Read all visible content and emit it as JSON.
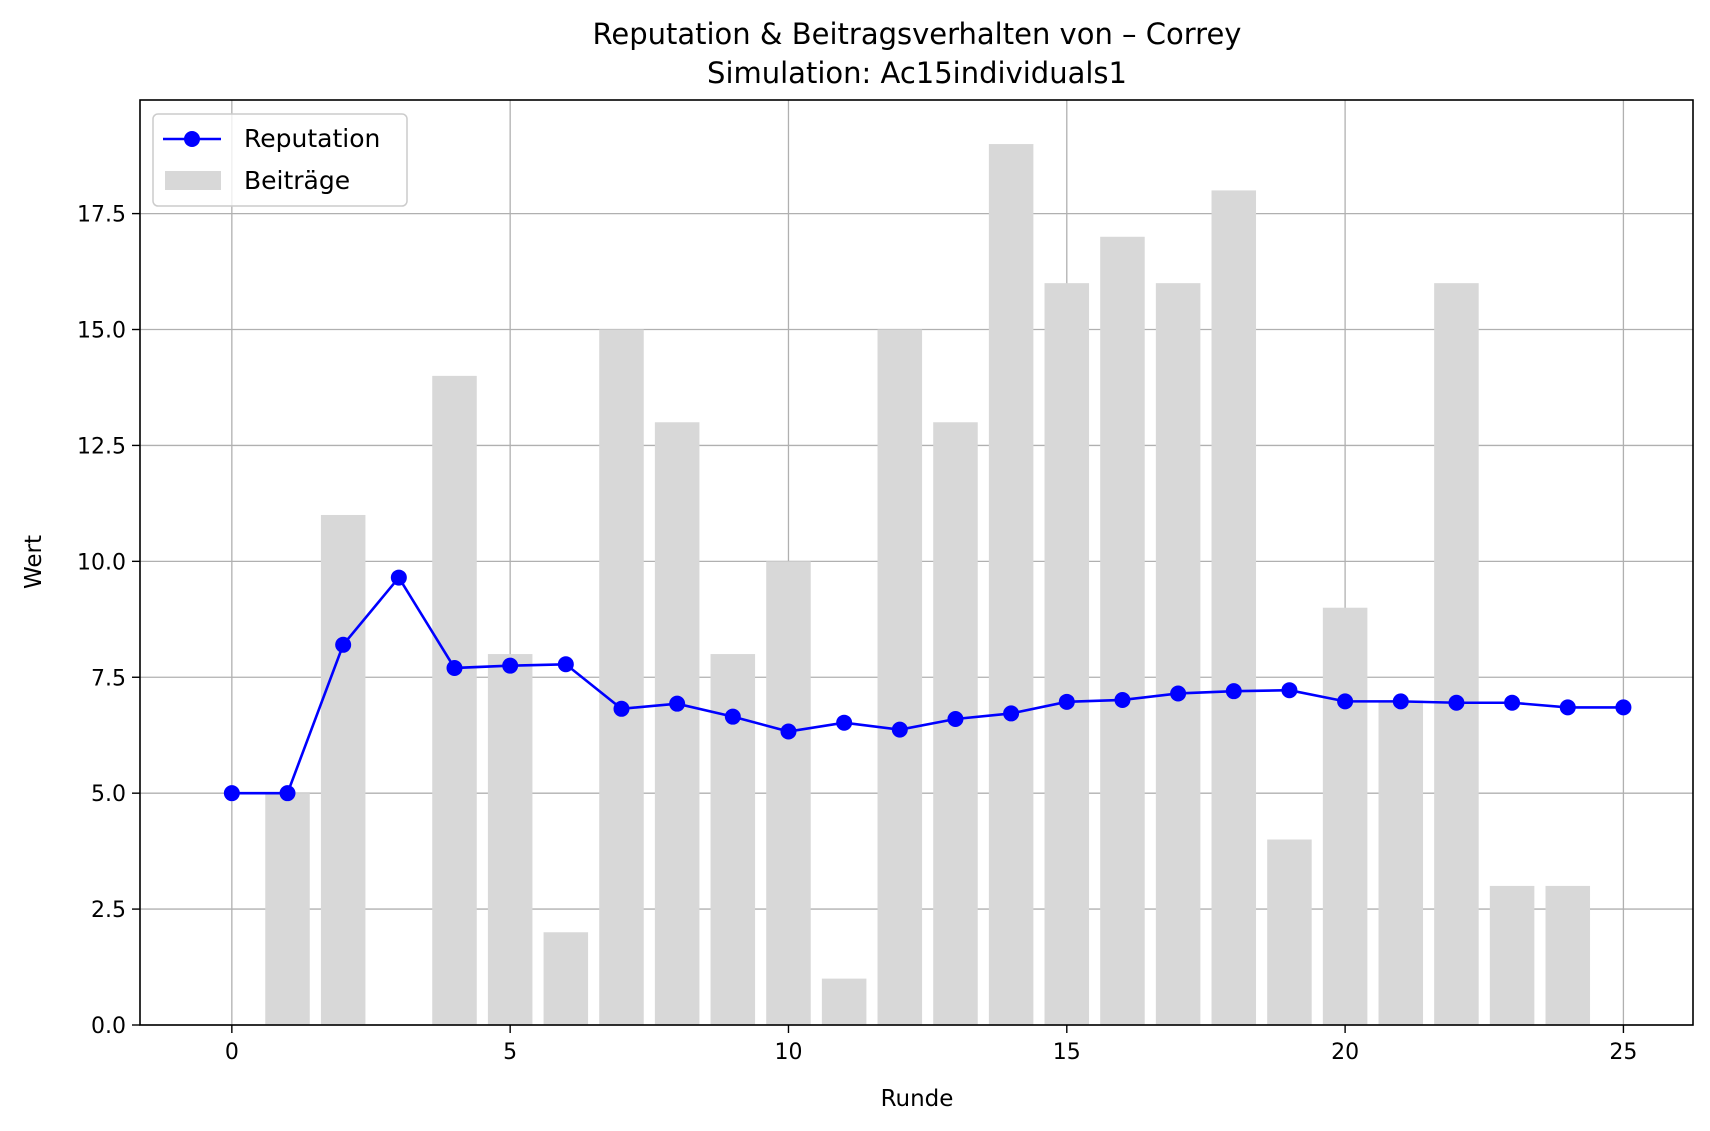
{
  "chart_data": {
    "type": "bar+line",
    "title": "Reputation & Beitragsverhalten von – Correy",
    "subtitle": "Simulation: Ac15individuals1",
    "xlabel": "Runde",
    "ylabel": "Wert",
    "xlim": [
      -1.65,
      26.25
    ],
    "ylim": [
      0,
      19.95
    ],
    "xticks": [
      0,
      5,
      10,
      15,
      20,
      25
    ],
    "yticks": [
      0.0,
      2.5,
      5.0,
      7.5,
      10.0,
      12.5,
      15.0,
      17.5
    ],
    "ytick_labels": [
      "0.0",
      "2.5",
      "5.0",
      "7.5",
      "10.0",
      "12.5",
      "15.0",
      "17.5"
    ],
    "grid": true,
    "legend_position": "upper-left",
    "series": [
      {
        "name": "Reputation",
        "kind": "line",
        "color": "#0000ff",
        "marker": "circle",
        "x": [
          0,
          1,
          2,
          3,
          4,
          5,
          6,
          7,
          8,
          9,
          10,
          11,
          12,
          13,
          14,
          15,
          16,
          17,
          18,
          19,
          20,
          21,
          22,
          23,
          24,
          25
        ],
        "values": [
          5.0,
          5.0,
          8.2,
          9.65,
          7.7,
          7.75,
          7.78,
          6.82,
          6.93,
          6.65,
          6.33,
          6.52,
          6.37,
          6.6,
          6.72,
          6.97,
          7.01,
          7.15,
          7.2,
          7.22,
          6.98,
          6.98,
          6.95,
          6.95,
          6.85,
          6.85
        ]
      },
      {
        "name": "Beiträge",
        "kind": "bar",
        "color": "#d8d8d8",
        "x": [
          1,
          2,
          3,
          4,
          5,
          6,
          7,
          8,
          9,
          10,
          11,
          12,
          13,
          14,
          15,
          16,
          17,
          18,
          19,
          20,
          21,
          22,
          23,
          24
        ],
        "values": [
          5,
          11,
          0,
          14,
          8,
          2,
          15,
          13,
          8,
          10,
          1,
          15,
          13,
          19,
          16,
          17,
          16,
          18,
          4,
          9,
          7,
          16,
          3,
          3
        ]
      }
    ]
  }
}
